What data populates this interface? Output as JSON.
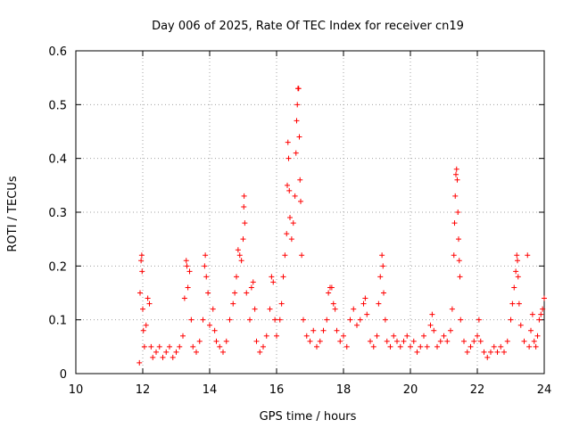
{
  "chart_data": {
    "type": "scatter",
    "title": "Day 006 of 2025, Rate Of TEC Index for receiver cn19",
    "xlabel": "GPS time / hours",
    "ylabel": "ROTI / TECUs",
    "xlim": [
      10,
      24
    ],
    "ylim": [
      0,
      0.6
    ],
    "xticks": [
      "10",
      "12",
      "14",
      "16",
      "18",
      "20",
      "22",
      "24"
    ],
    "yticks": [
      "0",
      "0.1",
      "0.2",
      "0.3",
      "0.4",
      "0.5",
      "0.6"
    ],
    "grid": true,
    "marker": "+",
    "color": "#ff0000",
    "series": [
      {
        "points": [
          [
            11.9,
            0.02
          ],
          [
            11.92,
            0.15
          ],
          [
            11.95,
            0.21
          ],
          [
            11.97,
            0.22
          ],
          [
            11.98,
            0.19
          ],
          [
            12.0,
            0.12
          ],
          [
            12.02,
            0.08
          ],
          [
            12.05,
            0.05
          ],
          [
            12.1,
            0.09
          ],
          [
            12.15,
            0.14
          ],
          [
            12.2,
            0.13
          ],
          [
            12.25,
            0.05
          ],
          [
            12.3,
            0.03
          ],
          [
            12.4,
            0.04
          ],
          [
            12.5,
            0.05
          ],
          [
            12.6,
            0.03
          ],
          [
            12.7,
            0.04
          ],
          [
            12.8,
            0.05
          ],
          [
            12.9,
            0.03
          ],
          [
            13.0,
            0.04
          ],
          [
            13.1,
            0.05
          ],
          [
            13.2,
            0.07
          ],
          [
            13.25,
            0.14
          ],
          [
            13.3,
            0.21
          ],
          [
            13.32,
            0.2
          ],
          [
            13.35,
            0.16
          ],
          [
            13.4,
            0.19
          ],
          [
            13.45,
            0.1
          ],
          [
            13.5,
            0.05
          ],
          [
            13.6,
            0.04
          ],
          [
            13.7,
            0.06
          ],
          [
            13.8,
            0.1
          ],
          [
            13.85,
            0.2
          ],
          [
            13.87,
            0.22
          ],
          [
            13.9,
            0.18
          ],
          [
            13.95,
            0.15
          ],
          [
            14.0,
            0.09
          ],
          [
            14.1,
            0.12
          ],
          [
            14.15,
            0.08
          ],
          [
            14.2,
            0.06
          ],
          [
            14.3,
            0.05
          ],
          [
            14.4,
            0.04
          ],
          [
            14.5,
            0.06
          ],
          [
            14.6,
            0.1
          ],
          [
            14.7,
            0.13
          ],
          [
            14.75,
            0.15
          ],
          [
            14.8,
            0.18
          ],
          [
            14.85,
            0.23
          ],
          [
            14.9,
            0.22
          ],
          [
            14.95,
            0.21
          ],
          [
            15.0,
            0.25
          ],
          [
            15.02,
            0.31
          ],
          [
            15.03,
            0.33
          ],
          [
            15.05,
            0.28
          ],
          [
            15.1,
            0.15
          ],
          [
            15.2,
            0.1
          ],
          [
            15.25,
            0.16
          ],
          [
            15.3,
            0.17
          ],
          [
            15.35,
            0.12
          ],
          [
            15.4,
            0.06
          ],
          [
            15.5,
            0.04
          ],
          [
            15.6,
            0.05
          ],
          [
            15.7,
            0.07
          ],
          [
            15.8,
            0.12
          ],
          [
            15.85,
            0.18
          ],
          [
            15.9,
            0.17
          ],
          [
            15.95,
            0.1
          ],
          [
            16.0,
            0.07
          ],
          [
            16.1,
            0.1
          ],
          [
            16.15,
            0.13
          ],
          [
            16.2,
            0.18
          ],
          [
            16.25,
            0.22
          ],
          [
            16.3,
            0.26
          ],
          [
            16.32,
            0.35
          ],
          [
            16.34,
            0.43
          ],
          [
            16.36,
            0.4
          ],
          [
            16.38,
            0.34
          ],
          [
            16.4,
            0.29
          ],
          [
            16.45,
            0.25
          ],
          [
            16.5,
            0.28
          ],
          [
            16.55,
            0.33
          ],
          [
            16.58,
            0.41
          ],
          [
            16.6,
            0.47
          ],
          [
            16.62,
            0.5
          ],
          [
            16.64,
            0.53
          ],
          [
            16.66,
            0.53
          ],
          [
            16.68,
            0.44
          ],
          [
            16.7,
            0.36
          ],
          [
            16.72,
            0.32
          ],
          [
            16.75,
            0.22
          ],
          [
            16.8,
            0.1
          ],
          [
            16.9,
            0.07
          ],
          [
            17.0,
            0.06
          ],
          [
            17.1,
            0.08
          ],
          [
            17.2,
            0.05
          ],
          [
            17.3,
            0.06
          ],
          [
            17.4,
            0.08
          ],
          [
            17.5,
            0.1
          ],
          [
            17.55,
            0.15
          ],
          [
            17.6,
            0.16
          ],
          [
            17.65,
            0.16
          ],
          [
            17.7,
            0.13
          ],
          [
            17.75,
            0.12
          ],
          [
            17.8,
            0.08
          ],
          [
            17.9,
            0.06
          ],
          [
            18.0,
            0.07
          ],
          [
            18.1,
            0.05
          ],
          [
            18.2,
            0.1
          ],
          [
            18.3,
            0.12
          ],
          [
            18.4,
            0.09
          ],
          [
            18.5,
            0.1
          ],
          [
            18.6,
            0.13
          ],
          [
            18.65,
            0.14
          ],
          [
            18.7,
            0.11
          ],
          [
            18.8,
            0.06
          ],
          [
            18.9,
            0.05
          ],
          [
            19.0,
            0.07
          ],
          [
            19.05,
            0.13
          ],
          [
            19.1,
            0.18
          ],
          [
            19.15,
            0.22
          ],
          [
            19.18,
            0.2
          ],
          [
            19.2,
            0.15
          ],
          [
            19.25,
            0.1
          ],
          [
            19.3,
            0.06
          ],
          [
            19.4,
            0.05
          ],
          [
            19.5,
            0.07
          ],
          [
            19.6,
            0.06
          ],
          [
            19.7,
            0.05
          ],
          [
            19.8,
            0.06
          ],
          [
            19.9,
            0.07
          ],
          [
            20.0,
            0.05
          ],
          [
            20.1,
            0.06
          ],
          [
            20.2,
            0.04
          ],
          [
            20.3,
            0.05
          ],
          [
            20.4,
            0.07
          ],
          [
            20.5,
            0.05
          ],
          [
            20.6,
            0.09
          ],
          [
            20.65,
            0.11
          ],
          [
            20.7,
            0.08
          ],
          [
            20.8,
            0.05
          ],
          [
            20.9,
            0.06
          ],
          [
            21.0,
            0.07
          ],
          [
            21.1,
            0.06
          ],
          [
            21.2,
            0.08
          ],
          [
            21.25,
            0.12
          ],
          [
            21.3,
            0.22
          ],
          [
            21.32,
            0.28
          ],
          [
            21.34,
            0.33
          ],
          [
            21.36,
            0.37
          ],
          [
            21.38,
            0.38
          ],
          [
            21.4,
            0.36
          ],
          [
            21.42,
            0.3
          ],
          [
            21.44,
            0.25
          ],
          [
            21.46,
            0.21
          ],
          [
            21.48,
            0.18
          ],
          [
            21.5,
            0.1
          ],
          [
            21.6,
            0.06
          ],
          [
            21.7,
            0.04
          ],
          [
            21.8,
            0.05
          ],
          [
            21.9,
            0.06
          ],
          [
            22.0,
            0.07
          ],
          [
            22.05,
            0.1
          ],
          [
            22.1,
            0.06
          ],
          [
            22.2,
            0.04
          ],
          [
            22.3,
            0.03
          ],
          [
            22.4,
            0.04
          ],
          [
            22.5,
            0.05
          ],
          [
            22.6,
            0.04
          ],
          [
            22.7,
            0.05
          ],
          [
            22.8,
            0.04
          ],
          [
            22.9,
            0.06
          ],
          [
            23.0,
            0.1
          ],
          [
            23.05,
            0.13
          ],
          [
            23.1,
            0.16
          ],
          [
            23.15,
            0.19
          ],
          [
            23.18,
            0.22
          ],
          [
            23.2,
            0.21
          ],
          [
            23.22,
            0.18
          ],
          [
            23.25,
            0.13
          ],
          [
            23.3,
            0.09
          ],
          [
            23.4,
            0.06
          ],
          [
            23.5,
            0.22
          ],
          [
            23.55,
            0.05
          ],
          [
            23.6,
            0.08
          ],
          [
            23.65,
            0.11
          ],
          [
            23.7,
            0.06
          ],
          [
            23.75,
            0.05
          ],
          [
            23.8,
            0.07
          ],
          [
            23.85,
            0.1
          ],
          [
            23.9,
            0.11
          ],
          [
            23.95,
            0.12
          ],
          [
            24.0,
            0.14
          ]
        ]
      }
    ]
  }
}
